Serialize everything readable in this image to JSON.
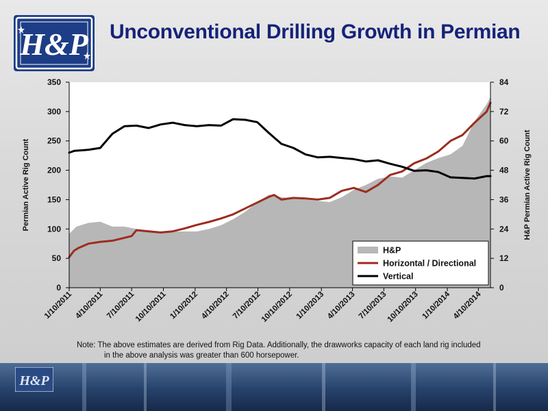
{
  "header": {
    "title": "Unconventional Drilling Growth in Permian",
    "logo_text": "H&P"
  },
  "note": {
    "line1": "Note:  The above estimates are derived from Rig Data.  Additionally, the drawworks capacity of each land rig included",
    "line2": "in the above analysis was greater than 600 horsepower."
  },
  "colors": {
    "title": "#15237a",
    "area": "#b7b7b7",
    "horizontal": "#9b2d1f",
    "vertical": "#000000"
  },
  "chart_data": {
    "type": "line",
    "title": "",
    "ylabel": "Permian Active Rig Count",
    "y2label": "H&P Permian Active Rig Count",
    "xlabel": "",
    "ylim": [
      0,
      350
    ],
    "y2lim": [
      0,
      84
    ],
    "yticks": [
      0,
      50,
      100,
      150,
      200,
      250,
      300,
      350
    ],
    "y2ticks": [
      0,
      12,
      24,
      36,
      48,
      60,
      72,
      84
    ],
    "xticks": [
      "1/10/2011",
      "4/10/2011",
      "7/10/2011",
      "10/10/2011",
      "1/10/2012",
      "4/10/2012",
      "7/10/2012",
      "10/10/2012",
      "1/10/2013",
      "4/10/2013",
      "7/10/2013",
      "10/10/2013",
      "1/10/2014",
      "4/10/2014"
    ],
    "x_start": "1/10/2011",
    "x_end": "5/15/2014",
    "grid": false,
    "legend_position": "bottom-right",
    "series": [
      {
        "name": "H&P",
        "type": "area",
        "axis": "right",
        "points": [
          [
            "1/10/2011",
            22
          ],
          [
            "1/31/2011",
            25
          ],
          [
            "3/7/2011",
            26.5
          ],
          [
            "4/10/2011",
            27
          ],
          [
            "5/15/2011",
            25
          ],
          [
            "6/19/2011",
            25
          ],
          [
            "7/24/2011",
            24
          ],
          [
            "8/28/2011",
            23.5
          ],
          [
            "10/2/2011",
            23
          ],
          [
            "11/6/2011",
            23
          ],
          [
            "12/11/2011",
            23
          ],
          [
            "1/15/2012",
            23
          ],
          [
            "2/19/2012",
            24
          ],
          [
            "3/25/2012",
            25.5
          ],
          [
            "4/29/2012",
            28
          ],
          [
            "6/3/2012",
            31
          ],
          [
            "7/8/2012",
            35
          ],
          [
            "8/12/2012",
            38
          ],
          [
            "9/16/2012",
            37
          ],
          [
            "10/21/2012",
            36.5
          ],
          [
            "11/25/2012",
            36
          ],
          [
            "12/30/2012",
            35.5
          ],
          [
            "2/3/2013",
            35
          ],
          [
            "3/10/2013",
            37
          ],
          [
            "4/14/2013",
            40
          ],
          [
            "5/19/2013",
            42
          ],
          [
            "6/23/2013",
            44.5
          ],
          [
            "7/28/2013",
            45.5
          ],
          [
            "9/1/2013",
            45
          ],
          [
            "10/6/2013",
            48
          ],
          [
            "11/10/2013",
            51
          ],
          [
            "12/15/2013",
            53
          ],
          [
            "1/19/2014",
            54.5
          ],
          [
            "2/23/2014",
            58
          ],
          [
            "3/30/2014",
            68
          ],
          [
            "5/4/2014",
            75
          ],
          [
            "5/15/2014",
            78
          ]
        ]
      },
      {
        "name": "Horizontal / Directional",
        "axis": "left",
        "points": [
          [
            "1/10/2011",
            52
          ],
          [
            "1/24/2011",
            63
          ],
          [
            "2/7/2011",
            68
          ],
          [
            "3/7/2011",
            75
          ],
          [
            "4/10/2011",
            78
          ],
          [
            "5/15/2011",
            80
          ],
          [
            "6/5/2011",
            83
          ],
          [
            "7/10/2011",
            88
          ],
          [
            "7/24/2011",
            98
          ],
          [
            "8/28/2011",
            96
          ],
          [
            "10/2/2011",
            94
          ],
          [
            "11/6/2011",
            96
          ],
          [
            "12/11/2011",
            101
          ],
          [
            "1/15/2012",
            107
          ],
          [
            "2/19/2012",
            112
          ],
          [
            "3/25/2012",
            118
          ],
          [
            "4/29/2012",
            125
          ],
          [
            "6/3/2012",
            135
          ],
          [
            "7/8/2012",
            145
          ],
          [
            "8/12/2012",
            155
          ],
          [
            "8/26/2012",
            158
          ],
          [
            "9/16/2012",
            150
          ],
          [
            "10/21/2012",
            153
          ],
          [
            "11/25/2012",
            152
          ],
          [
            "12/30/2012",
            150
          ],
          [
            "2/3/2013",
            153
          ],
          [
            "3/10/2013",
            165
          ],
          [
            "4/14/2013",
            170
          ],
          [
            "5/19/2013",
            163
          ],
          [
            "6/23/2013",
            175
          ],
          [
            "7/28/2013",
            192
          ],
          [
            "9/1/2013",
            198
          ],
          [
            "10/6/2013",
            212
          ],
          [
            "11/10/2013",
            220
          ],
          [
            "12/15/2013",
            232
          ],
          [
            "1/19/2014",
            250
          ],
          [
            "2/23/2014",
            260
          ],
          [
            "3/30/2014",
            281
          ],
          [
            "5/4/2014",
            300
          ],
          [
            "5/15/2014",
            315
          ]
        ]
      },
      {
        "name": "Vertical",
        "axis": "left",
        "points": [
          [
            "1/10/2011",
            230
          ],
          [
            "1/24/2011",
            233
          ],
          [
            "3/7/2011",
            235
          ],
          [
            "4/10/2011",
            238
          ],
          [
            "5/15/2011",
            262
          ],
          [
            "6/19/2011",
            275
          ],
          [
            "7/24/2011",
            276
          ],
          [
            "8/28/2011",
            272
          ],
          [
            "10/2/2011",
            278
          ],
          [
            "11/6/2011",
            281
          ],
          [
            "12/11/2011",
            277
          ],
          [
            "1/15/2012",
            275
          ],
          [
            "2/19/2012",
            277
          ],
          [
            "3/25/2012",
            276
          ],
          [
            "4/29/2012",
            287
          ],
          [
            "6/3/2012",
            286
          ],
          [
            "7/8/2012",
            282
          ],
          [
            "8/12/2012",
            263
          ],
          [
            "9/16/2012",
            245
          ],
          [
            "10/21/2012",
            238
          ],
          [
            "11/25/2012",
            227
          ],
          [
            "12/30/2012",
            222
          ],
          [
            "2/3/2013",
            223
          ],
          [
            "3/10/2013",
            221
          ],
          [
            "4/14/2013",
            219
          ],
          [
            "5/19/2013",
            215
          ],
          [
            "6/23/2013",
            217
          ],
          [
            "7/28/2013",
            211
          ],
          [
            "9/1/2013",
            206
          ],
          [
            "10/6/2013",
            199
          ],
          [
            "11/10/2013",
            200
          ],
          [
            "12/15/2013",
            197
          ],
          [
            "1/19/2014",
            188
          ],
          [
            "2/23/2014",
            187
          ],
          [
            "3/30/2014",
            186
          ],
          [
            "5/4/2014",
            190
          ],
          [
            "5/15/2014",
            190
          ]
        ]
      }
    ]
  }
}
